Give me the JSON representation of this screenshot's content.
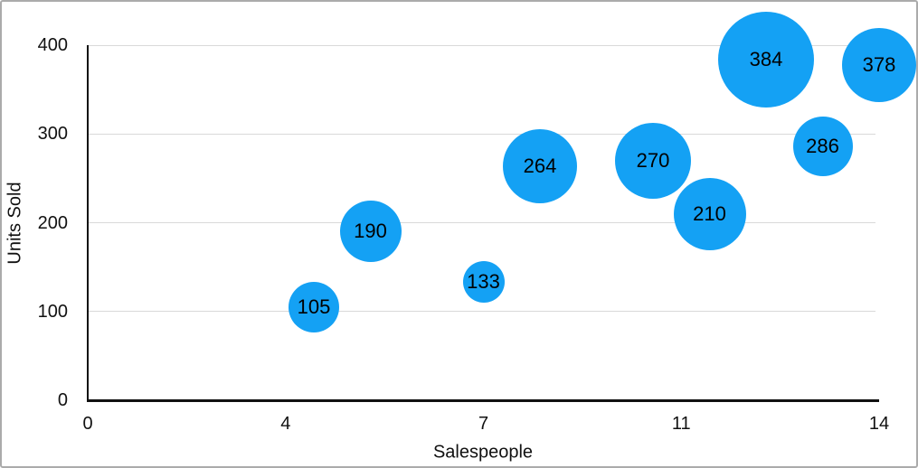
{
  "chart_data": {
    "type": "bubble",
    "title": "",
    "xlabel": "Salespeople",
    "ylabel": "Units Sold",
    "xlim": [
      0,
      14
    ],
    "ylim": [
      0,
      400
    ],
    "grid": "horizontal",
    "legend": "none",
    "x_ticks": [
      {
        "value": 0,
        "label": "0"
      },
      {
        "value": 3.5,
        "label": "4"
      },
      {
        "value": 7,
        "label": "7"
      },
      {
        "value": 10.5,
        "label": "11"
      },
      {
        "value": 14,
        "label": "14"
      }
    ],
    "y_ticks": [
      {
        "value": 0,
        "label": "0"
      },
      {
        "value": 100,
        "label": "100"
      },
      {
        "value": 200,
        "label": "200"
      },
      {
        "value": 300,
        "label": "300"
      },
      {
        "value": 400,
        "label": "400"
      }
    ],
    "series": [
      {
        "name": "Units Sold",
        "points": [
          {
            "x": 4,
            "y": 105,
            "label": "105",
            "radius_px": 28
          },
          {
            "x": 5,
            "y": 190,
            "label": "190",
            "radius_px": 34
          },
          {
            "x": 7,
            "y": 133,
            "label": "133",
            "radius_px": 23
          },
          {
            "x": 8,
            "y": 264,
            "label": "264",
            "radius_px": 41
          },
          {
            "x": 10,
            "y": 270,
            "label": "270",
            "radius_px": 42
          },
          {
            "x": 11,
            "y": 210,
            "label": "210",
            "radius_px": 40
          },
          {
            "x": 12,
            "y": 384,
            "label": "384",
            "radius_px": 53
          },
          {
            "x": 13,
            "y": 286,
            "label": "286",
            "radius_px": 33
          },
          {
            "x": 14,
            "y": 378,
            "label": "378",
            "radius_px": 41
          }
        ]
      }
    ]
  },
  "colors": {
    "bubble_fill": "#14A1F4",
    "bubble_label_text": "#000000",
    "gridline": "#D9D9D9",
    "axis_line": "#111111",
    "tick_text": "#111111",
    "figure_border": "#ABABAB",
    "background": "#FFFFFF"
  }
}
